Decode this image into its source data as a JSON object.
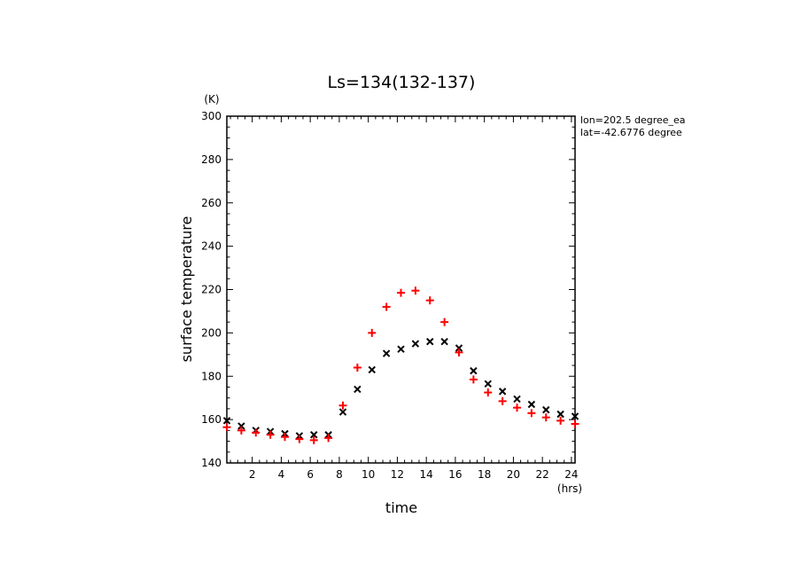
{
  "chart_data": {
    "type": "scatter",
    "title": "Ls=134(132-137)",
    "xlabel": "time",
    "ylabel": "surface temperature",
    "x_unit": "(hrs)",
    "y_unit": "(K)",
    "xlim": [
      0.25,
      24.25
    ],
    "ylim": [
      140,
      300
    ],
    "x_ticks": [
      2,
      4,
      6,
      8,
      10,
      12,
      14,
      16,
      18,
      20,
      22,
      24
    ],
    "y_ticks": [
      140,
      160,
      180,
      200,
      220,
      240,
      260,
      280,
      300
    ],
    "annotations": [
      "lon=202.5 degree_ea",
      "lat=-42.6776 degree"
    ],
    "series": [
      {
        "marker": "x",
        "color": "#000000",
        "x": [
          0.25,
          1.25,
          2.25,
          3.25,
          4.25,
          5.25,
          6.25,
          7.25,
          8.25,
          9.25,
          10.25,
          11.25,
          12.25,
          13.25,
          14.25,
          15.25,
          16.25,
          17.25,
          18.25,
          19.25,
          20.25,
          21.25,
          22.25,
          23.25,
          24.25
        ],
        "values": [
          159.5,
          157,
          155,
          154.5,
          153.5,
          152.5,
          153,
          153,
          163.5,
          174,
          183,
          190.5,
          192.5,
          195,
          196,
          196,
          193,
          182.5,
          176.5,
          173,
          169.5,
          167,
          164.5,
          162.5,
          161.5
        ]
      },
      {
        "marker": "+",
        "color": "#ff0000",
        "x": [
          0.25,
          1.25,
          2.25,
          3.25,
          4.25,
          5.25,
          6.25,
          7.25,
          8.25,
          9.25,
          10.25,
          11.25,
          12.25,
          13.25,
          14.25,
          15.25,
          16.25,
          17.25,
          18.25,
          19.25,
          20.25,
          21.25,
          22.25,
          23.25,
          24.25
        ],
        "values": [
          156.5,
          155,
          154,
          153,
          152,
          151,
          150.5,
          151.5,
          166.5,
          184,
          200,
          212,
          218.5,
          219.5,
          215,
          205,
          191,
          178.5,
          172.5,
          168.5,
          165.5,
          163,
          161,
          159.5,
          158
        ]
      }
    ]
  }
}
